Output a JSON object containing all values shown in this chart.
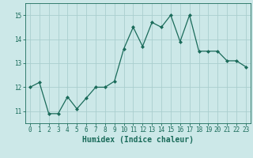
{
  "x": [
    0,
    1,
    2,
    3,
    4,
    5,
    6,
    7,
    8,
    9,
    10,
    11,
    12,
    13,
    14,
    15,
    16,
    17,
    18,
    19,
    20,
    21,
    22,
    23
  ],
  "y": [
    12.0,
    12.2,
    10.9,
    10.9,
    11.6,
    11.1,
    11.55,
    12.0,
    12.0,
    12.25,
    13.6,
    14.5,
    13.7,
    14.7,
    14.5,
    15.0,
    13.9,
    15.0,
    13.5,
    13.5,
    13.5,
    13.1,
    13.1,
    12.85
  ],
  "line_color": "#1a6b5a",
  "marker": "D",
  "marker_size": 2.0,
  "bg_color": "#cce8e8",
  "grid_color": "#aacece",
  "xlabel": "Humidex (Indice chaleur)",
  "ylim": [
    10.5,
    15.5
  ],
  "xlim": [
    -0.5,
    23.5
  ],
  "yticks": [
    11,
    12,
    13,
    14,
    15
  ],
  "xticks": [
    0,
    1,
    2,
    3,
    4,
    5,
    6,
    7,
    8,
    9,
    10,
    11,
    12,
    13,
    14,
    15,
    16,
    17,
    18,
    19,
    20,
    21,
    22,
    23
  ],
  "tick_color": "#1a6b5a",
  "label_fontsize": 6.5,
  "tick_fontsize": 5.5,
  "xlabel_fontsize": 7.0
}
